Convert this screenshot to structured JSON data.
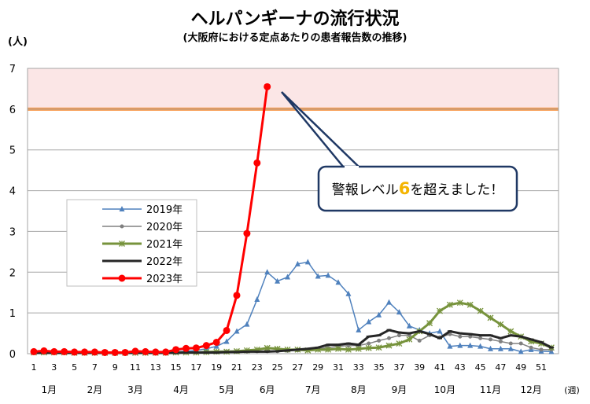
{
  "chart_data": {
    "type": "line",
    "title": "ヘルパンギーナの流行状況",
    "subtitle": "(大阪府における定点あたりの患者報告数の推移)",
    "ylabel": "(人)",
    "xlabel": "(週)",
    "ylim": [
      0,
      7
    ],
    "xlim": [
      1,
      52
    ],
    "yticks": [
      0,
      1,
      2,
      3,
      4,
      5,
      6,
      7
    ],
    "xticks": [
      1,
      3,
      5,
      7,
      9,
      11,
      13,
      15,
      17,
      19,
      21,
      23,
      25,
      27,
      29,
      31,
      33,
      35,
      37,
      39,
      41,
      43,
      45,
      47,
      49,
      51
    ],
    "months": [
      {
        "label": "1月",
        "week": 2.5
      },
      {
        "label": "2月",
        "week": 7
      },
      {
        "label": "3月",
        "week": 11
      },
      {
        "label": "4月",
        "week": 15.5
      },
      {
        "label": "5月",
        "week": 20
      },
      {
        "label": "6月",
        "week": 24
      },
      {
        "label": "7月",
        "week": 28.5
      },
      {
        "label": "8月",
        "week": 33
      },
      {
        "label": "9月",
        "week": 37
      },
      {
        "label": "10月",
        "week": 41.5
      },
      {
        "label": "11月",
        "week": 46
      },
      {
        "label": "12月",
        "week": 50
      }
    ],
    "warning_level": 6,
    "warning_band": [
      6,
      7
    ],
    "callout": {
      "pre": "警報レベル",
      "num": "6",
      "post": "を超えました！"
    },
    "legend_placement": "left-middle",
    "grid": true,
    "series": [
      {
        "name": "2019年",
        "color": "#4f81bd",
        "width": 1.5,
        "marker": "triangle",
        "values": [
          0.04,
          0.04,
          0.03,
          0.03,
          0.03,
          0.02,
          0.03,
          0.02,
          0.02,
          0.03,
          0.03,
          0.03,
          0.03,
          0.04,
          0.05,
          0.06,
          0.08,
          0.12,
          0.18,
          0.3,
          0.55,
          0.72,
          1.33,
          2.0,
          1.78,
          1.88,
          2.2,
          2.25,
          1.9,
          1.92,
          1.75,
          1.47,
          0.58,
          0.78,
          0.95,
          1.26,
          1.02,
          0.68,
          0.58,
          0.5,
          0.55,
          0.18,
          0.2,
          0.2,
          0.18,
          0.12,
          0.12,
          0.12,
          0.05,
          0.1,
          0.06,
          0.05
        ]
      },
      {
        "name": "2020年",
        "color": "#808080",
        "width": 1.5,
        "marker": "circle-small",
        "values": [
          0.05,
          0.04,
          0.04,
          0.03,
          0.03,
          0.03,
          0.03,
          0.03,
          0.02,
          0.02,
          0.02,
          0.03,
          0.03,
          0.03,
          0.03,
          0.03,
          0.03,
          0.03,
          0.03,
          0.04,
          0.05,
          0.05,
          0.06,
          0.06,
          0.06,
          0.07,
          0.08,
          0.1,
          0.12,
          0.15,
          0.18,
          0.2,
          0.2,
          0.25,
          0.32,
          0.38,
          0.45,
          0.45,
          0.32,
          0.45,
          0.4,
          0.48,
          0.42,
          0.42,
          0.38,
          0.35,
          0.3,
          0.25,
          0.25,
          0.15,
          0.1,
          0.1
        ]
      },
      {
        "name": "2021年",
        "color": "#77933c",
        "width": 3,
        "marker": "star",
        "values": [
          0.03,
          0.03,
          0.03,
          0.03,
          0.02,
          0.02,
          0.02,
          0.02,
          0.02,
          0.02,
          0.02,
          0.02,
          0.02,
          0.02,
          0.03,
          0.03,
          0.03,
          0.04,
          0.05,
          0.05,
          0.06,
          0.08,
          0.1,
          0.14,
          0.12,
          0.1,
          0.1,
          0.08,
          0.1,
          0.1,
          0.12,
          0.1,
          0.12,
          0.14,
          0.15,
          0.2,
          0.25,
          0.35,
          0.55,
          0.75,
          1.05,
          1.2,
          1.25,
          1.2,
          1.05,
          0.88,
          0.72,
          0.55,
          0.42,
          0.3,
          0.25,
          0.15
        ]
      },
      {
        "name": "2022年",
        "color": "#262626",
        "width": 3,
        "marker": "dash",
        "values": [
          0.02,
          0.02,
          0.02,
          0.02,
          0.02,
          0.02,
          0.02,
          0.02,
          0.02,
          0.02,
          0.02,
          0.02,
          0.02,
          0.02,
          0.02,
          0.03,
          0.03,
          0.03,
          0.03,
          0.04,
          0.04,
          0.05,
          0.05,
          0.05,
          0.06,
          0.08,
          0.1,
          0.12,
          0.15,
          0.22,
          0.22,
          0.25,
          0.22,
          0.42,
          0.45,
          0.58,
          0.52,
          0.5,
          0.55,
          0.48,
          0.38,
          0.55,
          0.5,
          0.48,
          0.45,
          0.45,
          0.38,
          0.45,
          0.42,
          0.35,
          0.28,
          0.15
        ]
      },
      {
        "name": "2023年",
        "color": "#ff0000",
        "width": 3,
        "marker": "circle",
        "values": [
          0.05,
          0.07,
          0.05,
          0.05,
          0.04,
          0.04,
          0.04,
          0.03,
          0.03,
          0.03,
          0.06,
          0.05,
          0.04,
          0.04,
          0.1,
          0.13,
          0.14,
          0.2,
          0.28,
          0.57,
          1.43,
          2.95,
          4.68,
          6.55
        ]
      }
    ]
  }
}
